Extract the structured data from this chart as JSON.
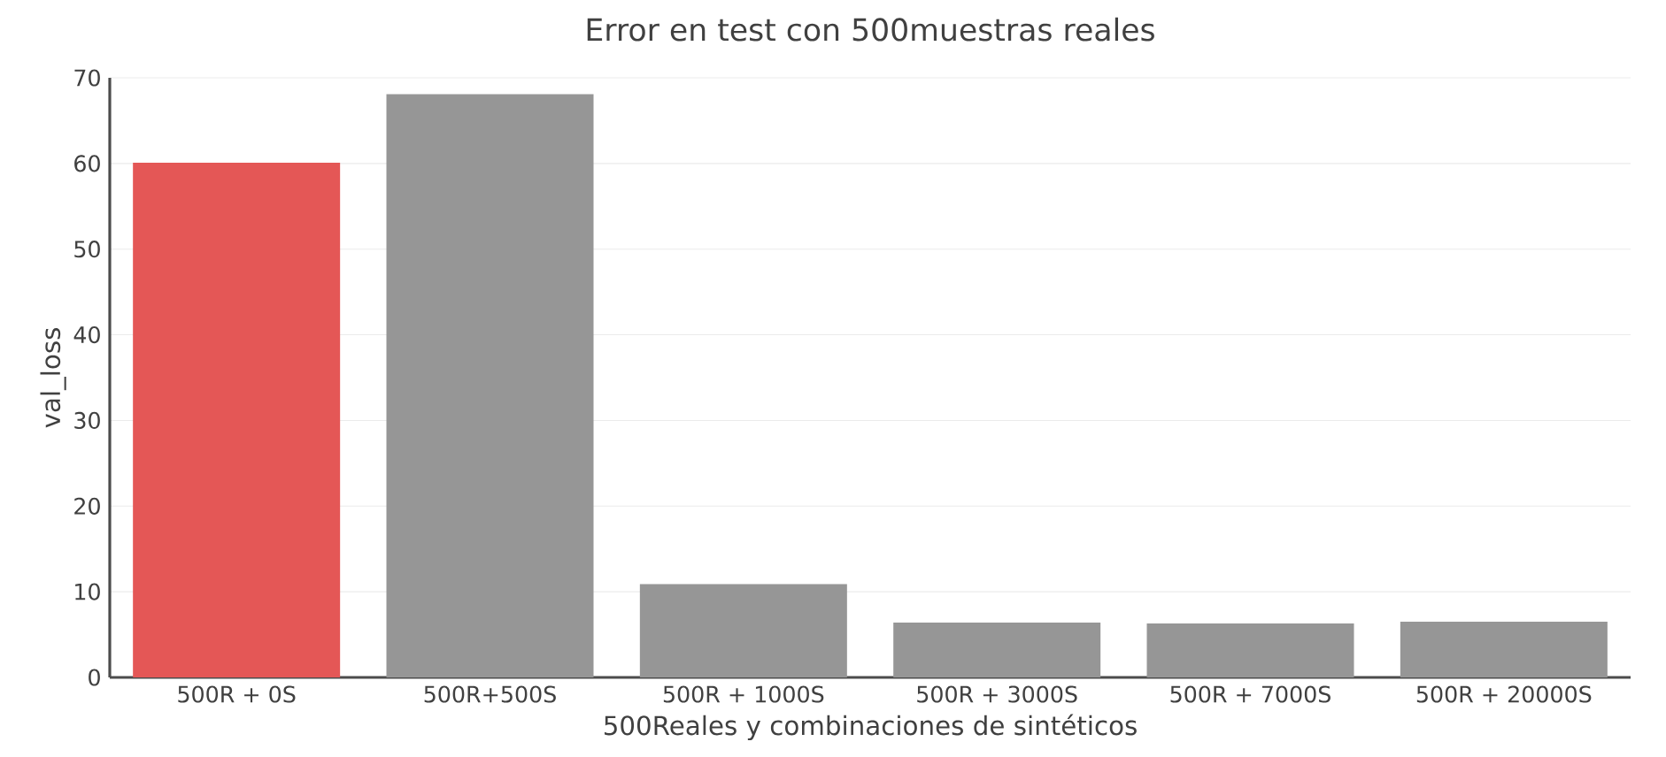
{
  "chart_data": {
    "type": "bar",
    "title": "Error en test con 500muestras reales",
    "xlabel": "500Reales y combinaciones de sintéticos",
    "ylabel": "val_loss",
    "categories": [
      "500R + 0S",
      "500R+500S",
      "500R + 1000S",
      "500R + 3000S",
      "500R + 7000S",
      "500R + 20000S"
    ],
    "values": [
      60.1,
      68.1,
      10.9,
      6.4,
      6.3,
      6.5
    ],
    "colors": [
      "#e45756",
      "#969696",
      "#969696",
      "#969696",
      "#969696",
      "#969696"
    ],
    "ylim": [
      0,
      70
    ],
    "yticks": [
      0,
      10,
      20,
      30,
      40,
      50,
      60,
      70
    ],
    "grid": "y"
  }
}
